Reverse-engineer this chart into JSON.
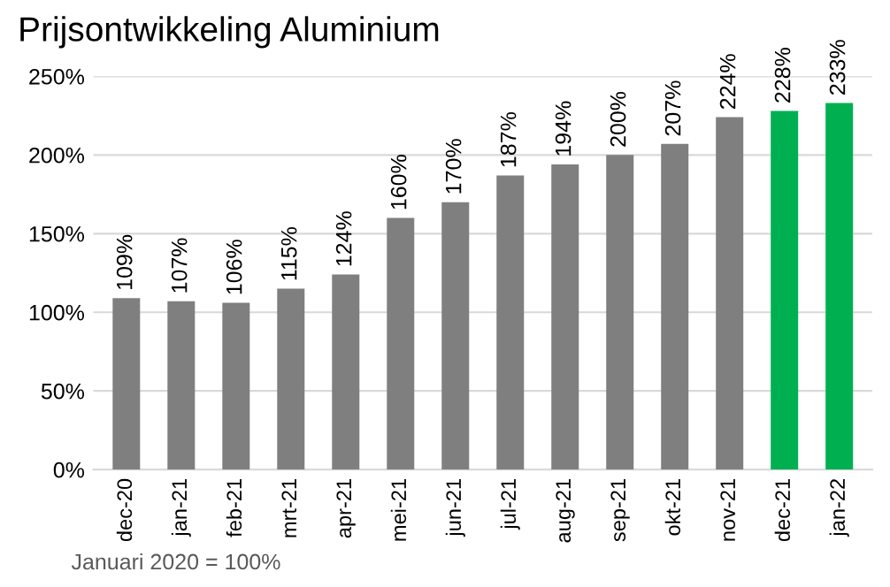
{
  "chart_data": {
    "type": "bar",
    "title": "Prijsontwikkeling Aluminium",
    "categories": [
      "dec-20",
      "jan-21",
      "feb-21",
      "mrt-21",
      "apr-21",
      "mei-21",
      "jun-21",
      "jul-21",
      "aug-21",
      "sep-21",
      "okt-21",
      "nov-21",
      "dec-21",
      "jan-22"
    ],
    "values": [
      109,
      107,
      106,
      115,
      124,
      160,
      170,
      187,
      194,
      200,
      207,
      224,
      228,
      233
    ],
    "colors": [
      "#7f7f7f",
      "#7f7f7f",
      "#7f7f7f",
      "#7f7f7f",
      "#7f7f7f",
      "#7f7f7f",
      "#7f7f7f",
      "#7f7f7f",
      "#7f7f7f",
      "#7f7f7f",
      "#7f7f7f",
      "#7f7f7f",
      "#00b050",
      "#00b050"
    ],
    "value_labels": [
      "109%",
      "107%",
      "106%",
      "115%",
      "124%",
      "160%",
      "170%",
      "187%",
      "194%",
      "200%",
      "207%",
      "224%",
      "228%",
      "233%"
    ],
    "ylim": [
      0,
      250
    ],
    "yticks": [
      {
        "value": 0,
        "label": "0%"
      },
      {
        "value": 50,
        "label": "50%"
      },
      {
        "value": 100,
        "label": "100%"
      },
      {
        "value": 150,
        "label": "150%"
      },
      {
        "value": 200,
        "label": "200%"
      },
      {
        "value": 250,
        "label": "250%"
      }
    ],
    "grid": "y",
    "annotations": [
      "Januari 2020 = 100%"
    ]
  }
}
